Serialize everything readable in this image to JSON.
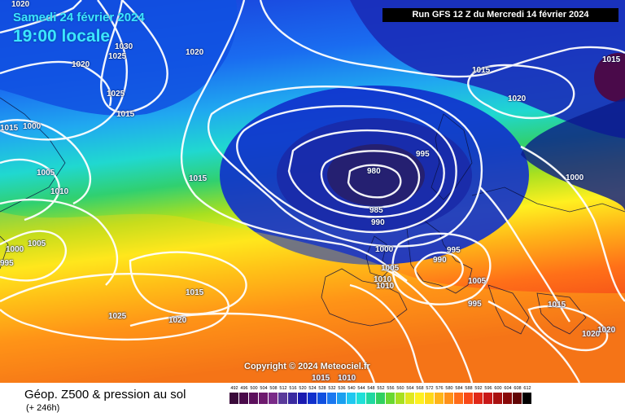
{
  "header": {
    "date": "Samedi 24 février 2024",
    "time": "19:00 locale",
    "run": "Run GFS 12 Z du Mercredi 14 février 2024"
  },
  "copyright": "Copyright © 2024 Meteociel.fr",
  "footer": {
    "title": "Géop. Z500 & pression au sol",
    "subtitle": "(+ 246h)"
  },
  "legend": {
    "values": [
      "492",
      "496",
      "500",
      "504",
      "508",
      "512",
      "516",
      "520",
      "524",
      "528",
      "532",
      "536",
      "540",
      "544",
      "548",
      "552",
      "556",
      "560",
      "564",
      "568",
      "572",
      "576",
      "580",
      "584",
      "588",
      "592",
      "596",
      "600",
      "604",
      "608",
      "612"
    ],
    "colors": [
      "#3a0a3a",
      "#4a0a4a",
      "#5c0f5c",
      "#6e1a6e",
      "#7a2a88",
      "#5a3a9a",
      "#3a2aa0",
      "#1a1ab0",
      "#1030cc",
      "#1050e0",
      "#1a78f0",
      "#1aa0f0",
      "#20c8f0",
      "#20e0d8",
      "#20d8a0",
      "#30d060",
      "#6ad830",
      "#a8e020",
      "#e0e820",
      "#fff020",
      "#ffd818",
      "#ffb418",
      "#ff9018",
      "#ff6c18",
      "#f84818",
      "#e02818",
      "#c81818",
      "#a81010",
      "#880808",
      "#600404",
      "#000000"
    ]
  },
  "isobars": [
    "1020",
    "1030",
    "1025",
    "1020",
    "1020",
    "1025",
    "1015",
    "1000",
    "1005",
    "1010",
    "1015",
    "980",
    "985",
    "990",
    "995",
    "1000",
    "1005",
    "1010",
    "1010",
    "995",
    "990",
    "1005",
    "1000",
    "1015",
    "1015",
    "1020",
    "1020",
    "1015",
    "1015",
    "1025",
    "1020",
    "1015",
    "1010",
    "1000",
    "1005",
    "1015",
    "995",
    "995",
    "1020"
  ]
}
